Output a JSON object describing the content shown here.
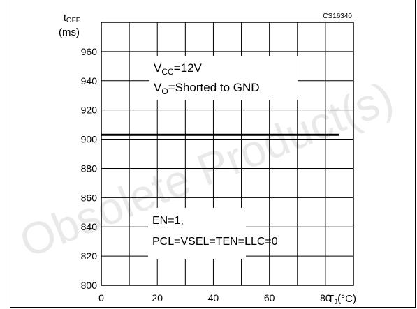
{
  "chart_data": {
    "type": "line",
    "figure_code": "CS16340",
    "ylabel_main": "t",
    "ylabel_sub": "OFF",
    "ylabel_unit": "(ms)",
    "xlabel_main": "T",
    "xlabel_sub": "J",
    "xlabel_unit": "(°C)",
    "xlim": [
      0,
      90
    ],
    "ylim": [
      800,
      980
    ],
    "grid": true,
    "x_ticks": [
      0,
      20,
      40,
      60,
      80
    ],
    "y_ticks": [
      800,
      820,
      840,
      860,
      880,
      900,
      920,
      940,
      960
    ],
    "series": [
      {
        "x": [
          0,
          85
        ],
        "y": [
          903,
          903
        ]
      }
    ],
    "annotations": [
      {
        "lines": [
          {
            "parts": [
              {
                "t": "V"
              },
              {
                "t": "CC",
                "sub": true
              },
              {
                "t": "=12V"
              }
            ]
          },
          {
            "parts": [
              {
                "t": "V"
              },
              {
                "t": "O",
                "sub": true
              },
              {
                "t": "=Shorted  to  GND"
              }
            ]
          }
        ]
      },
      {
        "lines": [
          {
            "parts": [
              {
                "t": "EN=1,"
              }
            ]
          },
          {
            "parts": [
              {
                "t": "PCL=VSEL=TEN=LLC=0"
              }
            ]
          }
        ]
      }
    ]
  },
  "watermark": "Obsolete Product(s)"
}
